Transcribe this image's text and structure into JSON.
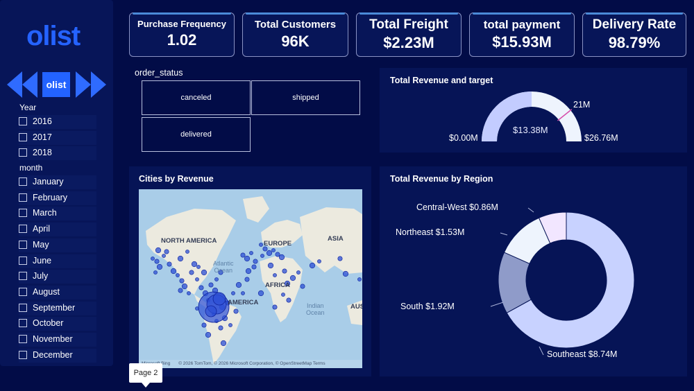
{
  "sidebar": {
    "logo": "olist",
    "nav_logo": "olist",
    "year_title": "Year",
    "years": [
      "2016",
      "2017",
      "2018"
    ],
    "month_title": "month",
    "months": [
      "January",
      "February",
      "March",
      "April",
      "May",
      "June",
      "July",
      "August",
      "September",
      "October",
      "November",
      "December"
    ]
  },
  "kpis": [
    {
      "label": "Purchase Frequency",
      "value": "1.02"
    },
    {
      "label": "Total Customers",
      "value": "96K"
    },
    {
      "label": "Total Freight",
      "value": "$2.23M"
    },
    {
      "label": "total payment",
      "value": "$15.93M"
    },
    {
      "label": "Delivery Rate",
      "value": "98.79%"
    }
  ],
  "order_status": {
    "title": "order_status",
    "items": [
      "canceled",
      "shipped",
      "delivered"
    ]
  },
  "revenue_target": {
    "title": "Total Revenue and target",
    "min_label": "$0.00M",
    "max_label": "$26.76M",
    "value_label": "$13.38M",
    "target_label": "21M",
    "fill_fraction": 0.5,
    "target_fraction": 0.785,
    "colors": {
      "fill": "#c3ccff",
      "track": "#eef4fd",
      "target": "#d64dab"
    }
  },
  "map": {
    "title": "Cities by Revenue",
    "labels": {
      "north_america": "NORTH AMERICA",
      "europe": "EUROPE",
      "asia": "ASIA",
      "africa": "AFRICA",
      "south_america": "AMERICA",
      "australia": "AUS",
      "atlantic_1": "Atlantic",
      "atlantic_2": "Ocean",
      "indian_1": "Indian",
      "indian_2": "Ocean"
    },
    "attribution": "© 2026 TomTom, © 2026 Microsoft Corporation, © OpenStreetMap   Terms",
    "provider": "Microsoft Bing",
    "colors": {
      "ocean": "#a9cde8",
      "land": "#eceadf",
      "bubble": "#2c4fd6"
    }
  },
  "region": {
    "title": "Total Revenue by Region"
  },
  "chart_data": {
    "type": "pie",
    "title": "Total Revenue by Region",
    "categories": [
      "Southeast",
      "South",
      "Northeast",
      "Central-West"
    ],
    "values": [
      8.74,
      1.92,
      1.53,
      0.86
    ],
    "data_labels": [
      "Southeast $8.74M",
      "South $1.92M",
      "Northeast $1.53M",
      "Central-West $0.86M"
    ],
    "unit": "$M",
    "colors": [
      "#c8d2ff",
      "#8f9bc9",
      "#eef4fd",
      "#f2e6ff"
    ],
    "extra_slice_color": "#b6c3ff"
  },
  "tooltip": {
    "text": "Page 2"
  }
}
